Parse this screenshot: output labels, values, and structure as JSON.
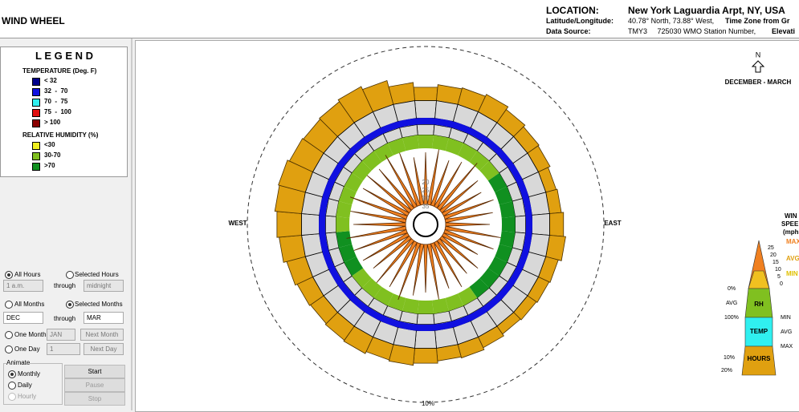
{
  "header": {
    "title": "WIND WHEEL",
    "location_label": "LOCATION:",
    "location": "New York Laguardia Arpt, NY, USA",
    "latlon_label": "Latitude/Longitude:",
    "latlon": "40.78° North, 73.88° West,",
    "tz": "Time Zone from Gr",
    "source_label": "Data Source:",
    "source": "TMY3     725030 WMO Station Number,",
    "elev": "Elevati"
  },
  "legend": {
    "title": "L E G E N D",
    "temperature_title": "TEMPERATURE (Deg. F)",
    "temperature": [
      {
        "label": "< 32",
        "color": "#00008b"
      },
      {
        "label": "32  -  70",
        "color": "#1010e0"
      },
      {
        "label": "70  -  75",
        "color": "#30f0f0"
      },
      {
        "label": "75  -  100",
        "color": "#e01010"
      },
      {
        "label": "> 100",
        "color": "#8b0000"
      }
    ],
    "humidity_title": "RELATIVE HUMIDITY (%)",
    "humidity": [
      {
        "label": "<30",
        "color": "#f0f020"
      },
      {
        "label": "30-70",
        "color": "#80c020"
      },
      {
        "label": ">70",
        "color": "#109020"
      }
    ]
  },
  "controls": {
    "all_hours": "All Hours",
    "selected_hours": "Selected Hours",
    "hour_from": "1 a.m.",
    "through1": "through",
    "hour_to": "midnight",
    "all_months": "All Months",
    "selected_months": "Selected Months",
    "month_from": "DEC",
    "through2": "through",
    "month_to": "MAR",
    "one_month": "One Month",
    "month": "JAN",
    "next_month": "Next Month",
    "one_day": "One Day",
    "day": "1",
    "next_day": "Next Day",
    "animate": "Animate",
    "monthly": "Monthly",
    "daily": "Daily",
    "hourly": "Hourly",
    "start": "Start",
    "pause": "Pause",
    "stop": "Stop"
  },
  "wheel": {
    "north": "N",
    "period": "DECEMBER - MARCH",
    "west": "WEST",
    "east": "EAST",
    "ring": {
      "value": 10,
      "label": "10%"
    },
    "speed_labels": [
      "35",
      "30",
      "25",
      "20"
    ],
    "hours": [
      2.5,
      3.0,
      3.2,
      3.6,
      3.0,
      2.6,
      2.4,
      2.0,
      2.2,
      2.6,
      3.0,
      2.4,
      2.2,
      2.0,
      1.8,
      2.2,
      2.6,
      2.4,
      2.8,
      3.2,
      3.0,
      3.4,
      3.2,
      3.0,
      3.2,
      3.6,
      4.2,
      4.6,
      5.0,
      5.2,
      4.8,
      4.6,
      4.8,
      5.2,
      4.6,
      3.4
    ],
    "speed": [
      18,
      19,
      17,
      18,
      20,
      17,
      16,
      18,
      17,
      16,
      19,
      18,
      15,
      17,
      16,
      18,
      17,
      19,
      17,
      18,
      20,
      18,
      19,
      17,
      18,
      19,
      20,
      18,
      19,
      20,
      18,
      19,
      18,
      20,
      19,
      17
    ]
  },
  "scale": {
    "title1": "WIN",
    "title2": "SPEE",
    "title3": "(mph",
    "max": "MAX",
    "avg": "AVG",
    "min": "MIN",
    "speeds": [
      "25",
      "20",
      "15",
      "10",
      "5",
      "0"
    ],
    "rh_top": "0%",
    "rh_avg": "AVG",
    "rh": "RH",
    "rh_bottom": "100%",
    "temp_min": "MIN",
    "temp": "TEMP",
    "temp_avg": "AVG",
    "temp_max": "MAX",
    "hours_top": "10%",
    "hours": "HOURS",
    "hours_bottom": "20%"
  }
}
